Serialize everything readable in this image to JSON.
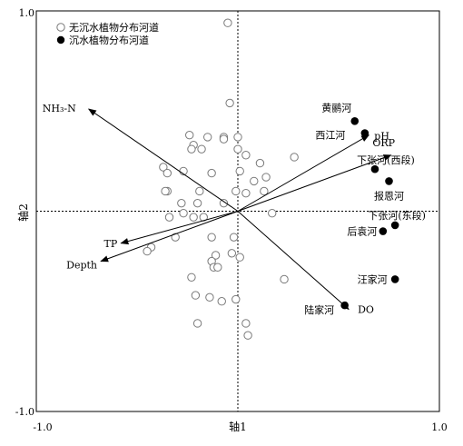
{
  "chart_data": {
    "type": "scatter",
    "xlabel": "轴1",
    "ylabel": "轴2",
    "xlim": [
      -1.0,
      1.0
    ],
    "ylim": [
      -1.0,
      1.0
    ],
    "x_tick_labels": [
      "-1.0",
      "1.0"
    ],
    "y_tick_labels": [
      "1.0",
      "-1.0"
    ],
    "grid": false,
    "legend_position": "top-left",
    "legend": [
      {
        "label": "无沉水植物分布河道",
        "marker": "open-circle"
      },
      {
        "label": "沉水植物分布河道",
        "marker": "filled-circle"
      }
    ],
    "series": [
      {
        "name": "无沉水植物分布河道",
        "marker": "open-circle",
        "points": [
          {
            "x": -0.05,
            "y": 0.94
          },
          {
            "x": -0.04,
            "y": 0.54
          },
          {
            "x": -0.24,
            "y": 0.38
          },
          {
            "x": -0.22,
            "y": 0.33
          },
          {
            "x": -0.15,
            "y": 0.37
          },
          {
            "x": -0.07,
            "y": 0.37
          },
          {
            "x": -0.07,
            "y": 0.36
          },
          {
            "x": 0.0,
            "y": 0.37
          },
          {
            "x": -0.23,
            "y": 0.31
          },
          {
            "x": -0.18,
            "y": 0.31
          },
          {
            "x": 0.0,
            "y": 0.31
          },
          {
            "x": 0.04,
            "y": 0.28
          },
          {
            "x": 0.11,
            "y": 0.24
          },
          {
            "x": 0.28,
            "y": 0.27
          },
          {
            "x": -0.37,
            "y": 0.22
          },
          {
            "x": -0.35,
            "y": 0.19
          },
          {
            "x": -0.27,
            "y": 0.2
          },
          {
            "x": -0.13,
            "y": 0.19
          },
          {
            "x": 0.01,
            "y": 0.2
          },
          {
            "x": 0.08,
            "y": 0.15
          },
          {
            "x": 0.14,
            "y": 0.17
          },
          {
            "x": -0.35,
            "y": 0.1
          },
          {
            "x": -0.36,
            "y": 0.1
          },
          {
            "x": -0.19,
            "y": 0.1
          },
          {
            "x": -0.01,
            "y": 0.1
          },
          {
            "x": 0.04,
            "y": 0.09
          },
          {
            "x": 0.13,
            "y": 0.1
          },
          {
            "x": -0.28,
            "y": 0.04
          },
          {
            "x": -0.2,
            "y": 0.04
          },
          {
            "x": -0.07,
            "y": 0.04
          },
          {
            "x": -0.27,
            "y": -0.01
          },
          {
            "x": -0.34,
            "y": -0.03
          },
          {
            "x": -0.22,
            "y": -0.03
          },
          {
            "x": -0.17,
            "y": -0.03
          },
          {
            "x": 0.17,
            "y": -0.01
          },
          {
            "x": -0.31,
            "y": -0.13
          },
          {
            "x": -0.43,
            "y": -0.18
          },
          {
            "x": -0.45,
            "y": -0.2
          },
          {
            "x": -0.13,
            "y": -0.13
          },
          {
            "x": -0.02,
            "y": -0.13
          },
          {
            "x": -0.11,
            "y": -0.22
          },
          {
            "x": -0.03,
            "y": -0.21
          },
          {
            "x": 0.01,
            "y": -0.23
          },
          {
            "x": -0.13,
            "y": -0.25
          },
          {
            "x": -0.12,
            "y": -0.28
          },
          {
            "x": -0.1,
            "y": -0.28
          },
          {
            "x": -0.23,
            "y": -0.33
          },
          {
            "x": 0.23,
            "y": -0.34
          },
          {
            "x": -0.21,
            "y": -0.42
          },
          {
            "x": -0.14,
            "y": -0.43
          },
          {
            "x": -0.08,
            "y": -0.45
          },
          {
            "x": -0.01,
            "y": -0.44
          },
          {
            "x": -0.2,
            "y": -0.56
          },
          {
            "x": 0.04,
            "y": -0.56
          },
          {
            "x": 0.05,
            "y": -0.62
          }
        ]
      },
      {
        "name": "沉水植物分布河道",
        "marker": "filled-circle",
        "points": [
          {
            "x": 0.58,
            "y": 0.45,
            "label": "黄鹂河"
          },
          {
            "x": 0.63,
            "y": 0.39,
            "label": "西江河"
          },
          {
            "x": 0.68,
            "y": 0.21,
            "label": "下张河(西段)"
          },
          {
            "x": 0.75,
            "y": 0.15,
            "label": "报恩河"
          },
          {
            "x": 0.78,
            "y": -0.07,
            "label": "下张河(东段)"
          },
          {
            "x": 0.72,
            "y": -0.1,
            "label": "后袁河"
          },
          {
            "x": 0.78,
            "y": -0.34,
            "label": "汪家河"
          },
          {
            "x": 0.53,
            "y": -0.47,
            "label": "陆家河"
          }
        ]
      }
    ],
    "vectors": [
      {
        "name": "NH₃-N",
        "x": -0.74,
        "y": 0.51
      },
      {
        "name": "pH",
        "x": 0.65,
        "y": 0.38
      },
      {
        "name": "ORP",
        "x": 0.76,
        "y": 0.28
      },
      {
        "name": "TP",
        "x": -0.58,
        "y": -0.16
      },
      {
        "name": "Depth",
        "x": -0.68,
        "y": -0.25
      },
      {
        "name": "DO",
        "x": 0.55,
        "y": -0.49
      }
    ]
  }
}
